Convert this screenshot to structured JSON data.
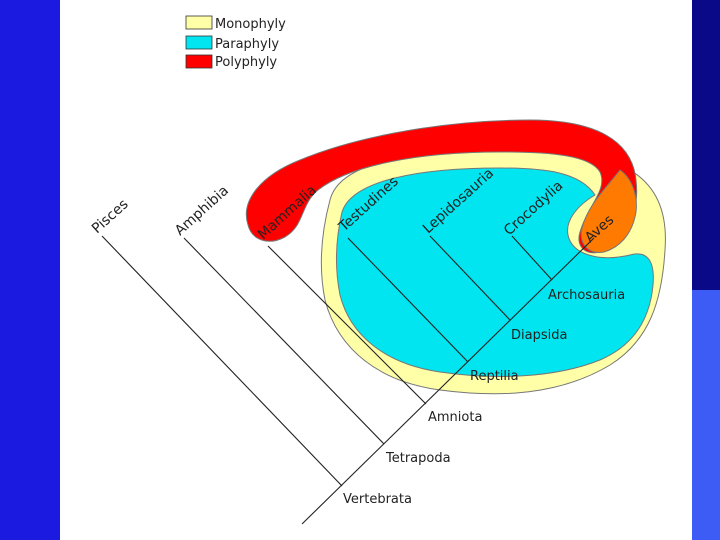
{
  "legend": [
    {
      "label": "Monophyly",
      "color": "#ffffa8"
    },
    {
      "label": "Paraphyly",
      "color": "#00e5ef"
    },
    {
      "label": "Polyphyly",
      "color": "#ff0000"
    }
  ],
  "taxa": {
    "pisces": "Pisces",
    "amphibia": "Amphibia",
    "mammalia": "Mammalia",
    "testudines": "Testudines",
    "lepidosauria": "Lepidosauria",
    "crocodylia": "Crocodylia",
    "aves": "Aves"
  },
  "clades": {
    "archosauria": "Archosauria",
    "diapsida": "Diapsida",
    "reptilia": "Reptilia",
    "amniota": "Amniota",
    "tetrapoda": "Tetrapoda",
    "vertebrata": "Vertebrata"
  },
  "colors": {
    "monophyly": "#ffffa8",
    "paraphyly": "#00e5ef",
    "polyphyly": "#ff0000",
    "overlap": "#ff7a00",
    "line": "#222222"
  }
}
